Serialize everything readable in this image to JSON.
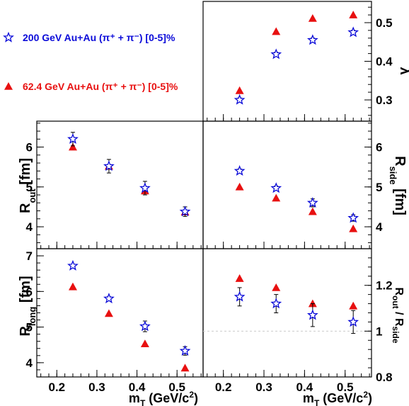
{
  "chart_data": {
    "type": "scatter",
    "legend": [
      {
        "series": "au200",
        "label": "200 GeV Au+Au (π⁺ + π⁻)  [0-5]%",
        "color": "#0b0bd9",
        "marker": "open-star"
      },
      {
        "series": "au624",
        "label": "62.4 GeV Au+Au (π⁺ + π⁻) [0-5]%",
        "color": "#e81010",
        "marker": "filled-triangle"
      }
    ],
    "xlabel": "m_T (GeV/c²)",
    "x_ticks": [
      "0.2",
      "0.3",
      "0.4",
      "0.5"
    ],
    "xlim": [
      0.15,
      0.565
    ],
    "panels": [
      {
        "id": "lambda",
        "ylabel": "λ",
        "ylim": [
          0.245,
          0.555
        ],
        "y_ticks": [
          0.3,
          0.4,
          0.5
        ],
        "y_tick_labels": [
          "0.3",
          "0.4",
          "0.5"
        ],
        "series": {
          "au200": {
            "x": [
              0.24,
              0.33,
              0.42,
              0.52
            ],
            "y": [
              0.3,
              0.418,
              0.455,
              0.475
            ],
            "err": [
              0.005,
              0.005,
              0.005,
              0.005
            ]
          },
          "au624": {
            "x": [
              0.24,
              0.33,
              0.42,
              0.52
            ],
            "y": [
              0.324,
              0.477,
              0.511,
              0.52
            ],
            "err": [
              0,
              0,
              0,
              0
            ]
          }
        }
      },
      {
        "id": "rout",
        "ylabel": "R_out [fm]",
        "ylim": [
          3.45,
          6.65
        ],
        "y_ticks": [
          4,
          5,
          6
        ],
        "y_tick_labels": [
          "4",
          "5",
          "6"
        ],
        "series": {
          "au200": {
            "x": [
              0.24,
              0.33,
              0.42,
              0.52
            ],
            "y": [
              6.2,
              5.52,
              4.97,
              4.38
            ],
            "err": [
              0.17,
              0.17,
              0.17,
              0.12
            ]
          },
          "au624": {
            "x": [
              0.24,
              0.33,
              0.42,
              0.52
            ],
            "y": [
              6.0,
              5.52,
              4.9,
              4.37
            ],
            "err": [
              0,
              0,
              0,
              0
            ]
          }
        }
      },
      {
        "id": "rside",
        "ylabel": "R_side [fm]",
        "ylim": [
          3.45,
          6.65
        ],
        "y_ticks": [
          4,
          5,
          6
        ],
        "y_tick_labels": [
          "4",
          "5",
          "6"
        ],
        "series": {
          "au200": {
            "x": [
              0.24,
              0.33,
              0.42,
              0.52
            ],
            "y": [
              5.4,
              4.97,
              4.6,
              4.22
            ],
            "err": [
              0.05,
              0.05,
              0.1,
              0.08
            ]
          },
          "au624": {
            "x": [
              0.24,
              0.33,
              0.42,
              0.52
            ],
            "y": [
              5.0,
              4.72,
              4.38,
              3.95
            ],
            "err": [
              0,
              0,
              0,
              0
            ]
          }
        }
      },
      {
        "id": "rlong",
        "ylabel": "R_long [fm]",
        "ylim": [
          3.6,
          7.2
        ],
        "y_ticks": [
          4,
          5,
          6,
          7
        ],
        "y_tick_labels": [
          "4",
          "5",
          "6",
          "7"
        ],
        "series": {
          "au200": {
            "x": [
              0.24,
              0.33,
              0.42,
              0.52
            ],
            "y": [
              6.72,
              5.8,
              5.02,
              4.33
            ],
            "err": [
              0.04,
              0.05,
              0.15,
              0.12
            ]
          },
          "au624": {
            "x": [
              0.24,
              0.33,
              0.42,
              0.52
            ],
            "y": [
              6.13,
              5.38,
              4.53,
              3.85
            ],
            "err": [
              0,
              0,
              0,
              0
            ]
          }
        }
      },
      {
        "id": "ratio",
        "ylabel": "R_out / R_side",
        "ylim": [
          0.8,
          1.36
        ],
        "y_ticks": [
          0.8,
          1.0,
          1.2
        ],
        "y_tick_labels": [
          "0.8",
          "1",
          "1.2"
        ],
        "reference_line": 1.0,
        "series": {
          "au200": {
            "x": [
              0.24,
              0.33,
              0.42,
              0.52
            ],
            "y": [
              1.15,
              1.12,
              1.07,
              1.04
            ],
            "err": [
              0.04,
              0.04,
              0.05,
              0.05
            ]
          },
          "au624": {
            "x": [
              0.24,
              0.33,
              0.42,
              0.52
            ],
            "y": [
              1.23,
              1.19,
              1.12,
              1.11
            ],
            "err": [
              0,
              0,
              0,
              0
            ]
          }
        }
      }
    ]
  }
}
